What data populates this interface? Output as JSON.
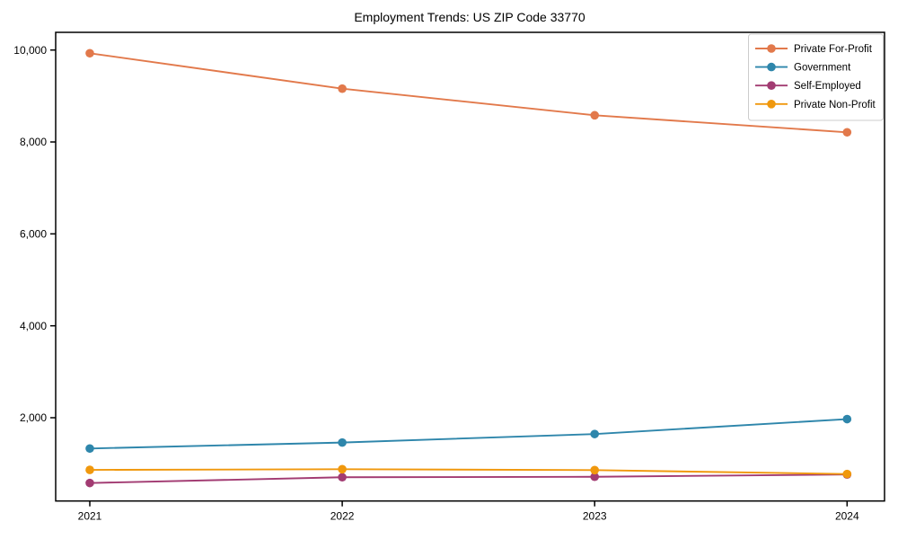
{
  "chart_data": {
    "type": "line",
    "title": "Employment Trends: US ZIP Code 33770",
    "xlabel": "",
    "ylabel": "",
    "x": [
      2021,
      2022,
      2023,
      2024
    ],
    "x_tick_labels": [
      "2021",
      "2022",
      "2023",
      "2024"
    ],
    "y_ticks": [
      2000,
      4000,
      6000,
      8000,
      10000
    ],
    "y_tick_labels": [
      "2,000",
      "4,000",
      "6,000",
      "8,000",
      "10,000"
    ],
    "ylim": [
      188,
      10385
    ],
    "grid": false,
    "legend_position": "upper-right",
    "series": [
      {
        "name": "Private For-Profit",
        "color": "#E2794B",
        "marker": "circle",
        "values": [
          9930,
          9160,
          8580,
          8210
        ]
      },
      {
        "name": "Government",
        "color": "#2E86AB",
        "marker": "circle",
        "values": [
          1330,
          1460,
          1645,
          1970
        ]
      },
      {
        "name": "Self-Employed",
        "color": "#A23B72",
        "marker": "circle",
        "values": [
          580,
          705,
          715,
          765
        ]
      },
      {
        "name": "Private Non-Profit",
        "color": "#F0980D",
        "marker": "circle",
        "values": [
          865,
          880,
          860,
          775
        ]
      }
    ],
    "colors": {
      "axis": "#000000",
      "background": "#ffffff",
      "legend_border": "#cccccc"
    }
  }
}
